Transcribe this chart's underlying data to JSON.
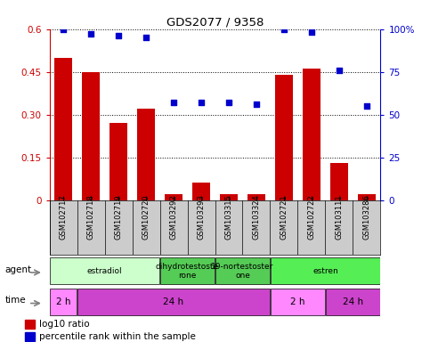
{
  "title": "GDS2077 / 9358",
  "samples": [
    "GSM102717",
    "GSM102718",
    "GSM102719",
    "GSM102720",
    "GSM103292",
    "GSM103293",
    "GSM103315",
    "GSM103324",
    "GSM102721",
    "GSM102722",
    "GSM103111",
    "GSM103286"
  ],
  "log10_ratio": [
    0.5,
    0.45,
    0.27,
    0.32,
    0.02,
    0.06,
    0.02,
    0.02,
    0.44,
    0.46,
    0.13,
    0.02
  ],
  "percentile_rank": [
    100,
    97,
    96,
    95,
    57,
    57,
    57,
    56,
    100,
    98,
    76,
    55
  ],
  "bar_color": "#cc0000",
  "dot_color": "#0000cc",
  "left_yticks": [
    0,
    0.15,
    0.3,
    0.45,
    0.6
  ],
  "left_ylabels": [
    "0",
    "0.15",
    "0.30",
    "0.45",
    "0.6"
  ],
  "right_yticks": [
    0,
    25,
    50,
    75,
    100
  ],
  "right_ylabels": [
    "0",
    "25",
    "50",
    "75",
    "100%"
  ],
  "ylim_left": [
    0,
    0.6
  ],
  "ylim_right": [
    0,
    100
  ],
  "agent_labels": [
    {
      "text": "estradiol",
      "start": 0,
      "end": 4,
      "color": "#ccffcc"
    },
    {
      "text": "dihydrotestoste\nrone",
      "start": 4,
      "end": 6,
      "color": "#55cc55"
    },
    {
      "text": "19-nortestoster\none",
      "start": 6,
      "end": 8,
      "color": "#55cc55"
    },
    {
      "text": "estren",
      "start": 8,
      "end": 12,
      "color": "#55ee55"
    }
  ],
  "time_labels": [
    {
      "text": "2 h",
      "start": 0,
      "end": 1,
      "color": "#ff88ff"
    },
    {
      "text": "24 h",
      "start": 1,
      "end": 8,
      "color": "#cc44cc"
    },
    {
      "text": "2 h",
      "start": 8,
      "end": 10,
      "color": "#ff88ff"
    },
    {
      "text": "24 h",
      "start": 10,
      "end": 12,
      "color": "#cc44cc"
    }
  ],
  "legend_bar_label": "log10 ratio",
  "legend_dot_label": "percentile rank within the sample",
  "bg_color": "#ffffff",
  "tick_label_color_left": "#cc0000",
  "tick_label_color_right": "#0000cc",
  "sample_bg_color": "#cccccc"
}
